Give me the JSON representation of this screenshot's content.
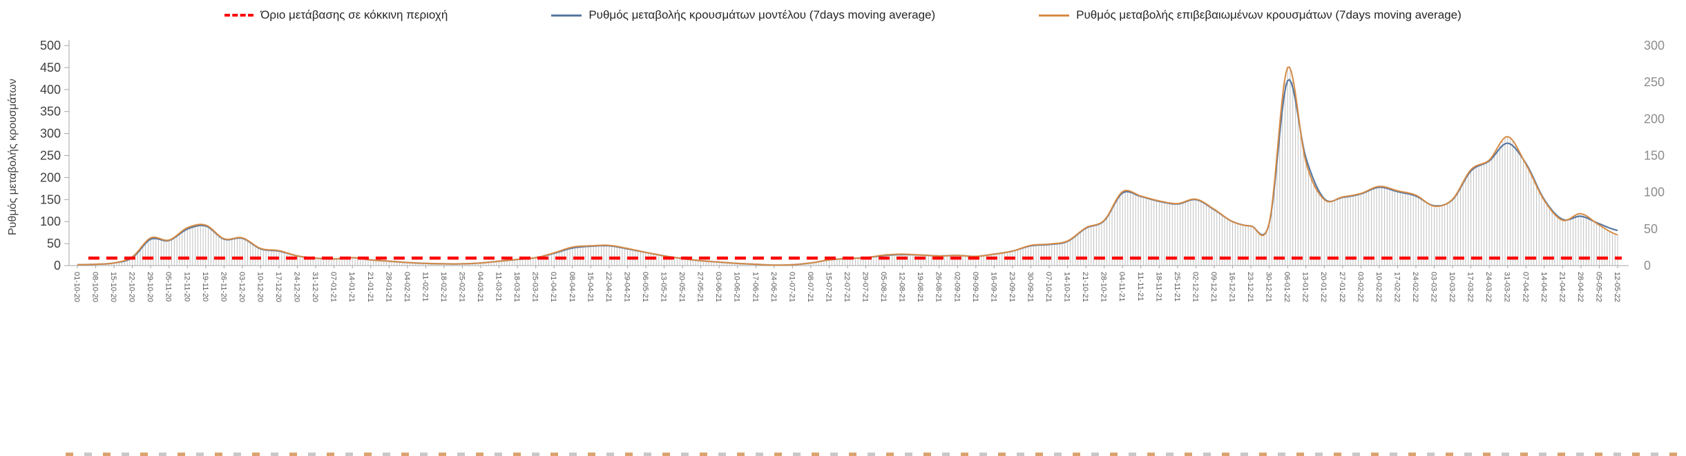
{
  "legend": {
    "items": [
      {
        "key": "threshold",
        "label": "Όριο μετάβασης σε κόκκινη περιοχή",
        "color": "#ff0000",
        "marker": "dashed-line"
      },
      {
        "key": "model",
        "label": "Ρυθμός μεταβολής κρουσμάτων μοντέλου (7days moving average)",
        "color": "#5878a0",
        "marker": "line"
      },
      {
        "key": "confirmed",
        "label": "Ρυθμός μεταβολής επιβεβαιωμένων κρουσμάτων (7days moving average)",
        "color": "#d78b45",
        "marker": "line"
      }
    ]
  },
  "axes": {
    "y_left": {
      "label": "Ρυθμός μεταβολής κρουσμάτων",
      "min": 0,
      "max": 500,
      "step": 50,
      "tick_color": "#404040"
    },
    "y_right": {
      "min": 0,
      "max": 300,
      "step": 50,
      "tick_color": "#8c8c8c"
    },
    "x_label_color": "#595959",
    "axis_line_color": "#a6a6a6"
  },
  "chart_data": {
    "type": "line",
    "title": "",
    "xlabel": "",
    "ylabel": "Ρυθμός μεταβολής κρουσμάτων",
    "ylim_left": [
      0,
      500
    ],
    "ylim_right": [
      0,
      300
    ],
    "grid": false,
    "legend_position": "top",
    "daily_bars": {
      "present": true,
      "color": "#b8b8b8",
      "note": "thin vertical daily bars following the 7-day moving average envelope"
    },
    "threshold": {
      "name": "Όριο μετάβασης σε κόκκινη περιοχή",
      "value": 17,
      "color": "#ff0000",
      "style": "dashed"
    },
    "x": [
      "01-10-20",
      "08-10-20",
      "15-10-20",
      "22-10-20",
      "29-10-20",
      "05-11-20",
      "12-11-20",
      "19-11-20",
      "26-11-20",
      "03-12-20",
      "10-12-20",
      "17-12-20",
      "24-12-20",
      "31-12-20",
      "07-01-21",
      "14-01-21",
      "21-01-21",
      "28-01-21",
      "04-02-21",
      "11-02-21",
      "18-02-21",
      "25-02-21",
      "04-03-21",
      "11-03-21",
      "18-03-21",
      "25-03-21",
      "01-04-21",
      "08-04-21",
      "15-04-21",
      "22-04-21",
      "29-04-21",
      "06-05-21",
      "13-05-21",
      "20-05-21",
      "27-05-21",
      "03-06-21",
      "10-06-21",
      "17-06-21",
      "24-06-21",
      "01-07-21",
      "08-07-21",
      "15-07-21",
      "22-07-21",
      "29-07-21",
      "05-08-21",
      "12-08-21",
      "19-08-21",
      "26-08-21",
      "02-09-21",
      "09-09-21",
      "16-09-21",
      "23-09-21",
      "30-09-21",
      "07-10-21",
      "14-10-21",
      "21-10-21",
      "28-10-21",
      "04-11-21",
      "11-11-21",
      "18-11-21",
      "25-11-21",
      "02-12-21",
      "09-12-21",
      "16-12-21",
      "23-12-21",
      "30-12-21",
      "06-01-22",
      "13-01-22",
      "20-01-22",
      "27-01-22",
      "03-02-22",
      "10-02-22",
      "17-02-22",
      "24-02-22",
      "03-03-22",
      "10-03-22",
      "17-03-22",
      "24-03-22",
      "31-03-22",
      "07-04-22",
      "14-04-22",
      "21-04-22",
      "28-04-22",
      "05-05-22",
      "12-05-22"
    ],
    "series": [
      {
        "name": "Ρυθμός μεταβολής κρουσμάτων μοντέλου (7days moving average)",
        "color": "#5878a0",
        "axis": "left",
        "values": [
          2,
          3,
          6,
          18,
          60,
          57,
          83,
          90,
          60,
          62,
          38,
          33,
          22,
          17,
          15,
          18,
          13,
          10,
          7,
          5,
          4,
          4,
          6,
          10,
          14,
          18,
          28,
          40,
          44,
          45,
          38,
          30,
          22,
          16,
          11,
          8,
          5,
          3,
          1,
          2,
          6,
          13,
          16,
          18,
          23,
          25,
          24,
          22,
          23,
          21,
          26,
          33,
          45,
          48,
          55,
          85,
          102,
          165,
          157,
          146,
          140,
          150,
          127,
          100,
          90,
          96,
          420,
          245,
          152,
          155,
          163,
          178,
          168,
          158,
          136,
          150,
          215,
          238,
          278,
          232,
          150,
          105,
          112,
          95,
          80
        ]
      },
      {
        "name": "Ρυθμός μεταβολής επιβεβαιωμένων κρουσμάτων (7days moving average)",
        "color": "#d78b45",
        "axis": "left",
        "values": [
          2,
          3,
          6,
          20,
          63,
          58,
          86,
          92,
          61,
          63,
          39,
          34,
          22,
          17,
          15,
          18,
          13,
          10,
          7,
          5,
          4,
          4,
          6,
          10,
          14,
          18,
          29,
          42,
          45,
          46,
          39,
          30,
          22,
          16,
          11,
          8,
          5,
          3,
          1,
          2,
          6,
          13,
          16,
          18,
          24,
          26,
          24,
          22,
          23,
          21,
          26,
          33,
          46,
          49,
          56,
          86,
          103,
          168,
          158,
          147,
          141,
          151,
          128,
          100,
          90,
          97,
          450,
          235,
          150,
          156,
          164,
          180,
          170,
          160,
          135,
          151,
          218,
          240,
          293,
          230,
          148,
          103,
          118,
          92,
          70
        ]
      }
    ]
  }
}
